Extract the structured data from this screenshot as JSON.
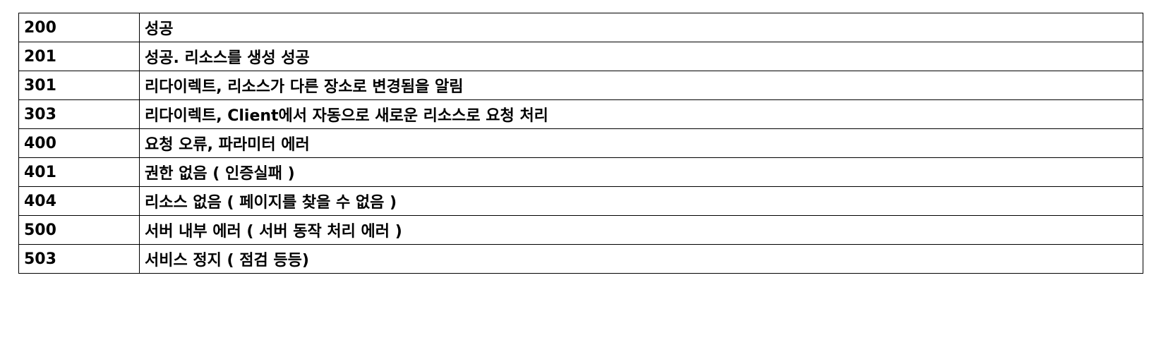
{
  "status_codes": {
    "rows": [
      {
        "code": "200",
        "description": "성공"
      },
      {
        "code": "201",
        "description": "성공. 리소스를 생성 성공"
      },
      {
        "code": "301",
        "description": "리다이렉트, 리소스가 다른 장소로 변경됨을 알림"
      },
      {
        "code": "303",
        "description": "리다이렉트, Client에서 자동으로 새로운 리소스로 요청 처리"
      },
      {
        "code": "400",
        "description": "요청 오류, 파라미터 에러"
      },
      {
        "code": "401",
        "description": "권한 없음 ( 인증실패 )"
      },
      {
        "code": "404",
        "description": "리소스 없음 ( 페이지를 찾을 수 없음 )"
      },
      {
        "code": "500",
        "description": "서버 내부 에러 ( 서버 동작 처리 에러 )"
      },
      {
        "code": "503",
        "description": "서비스 정지 ( 점검 등등)"
      }
    ]
  }
}
